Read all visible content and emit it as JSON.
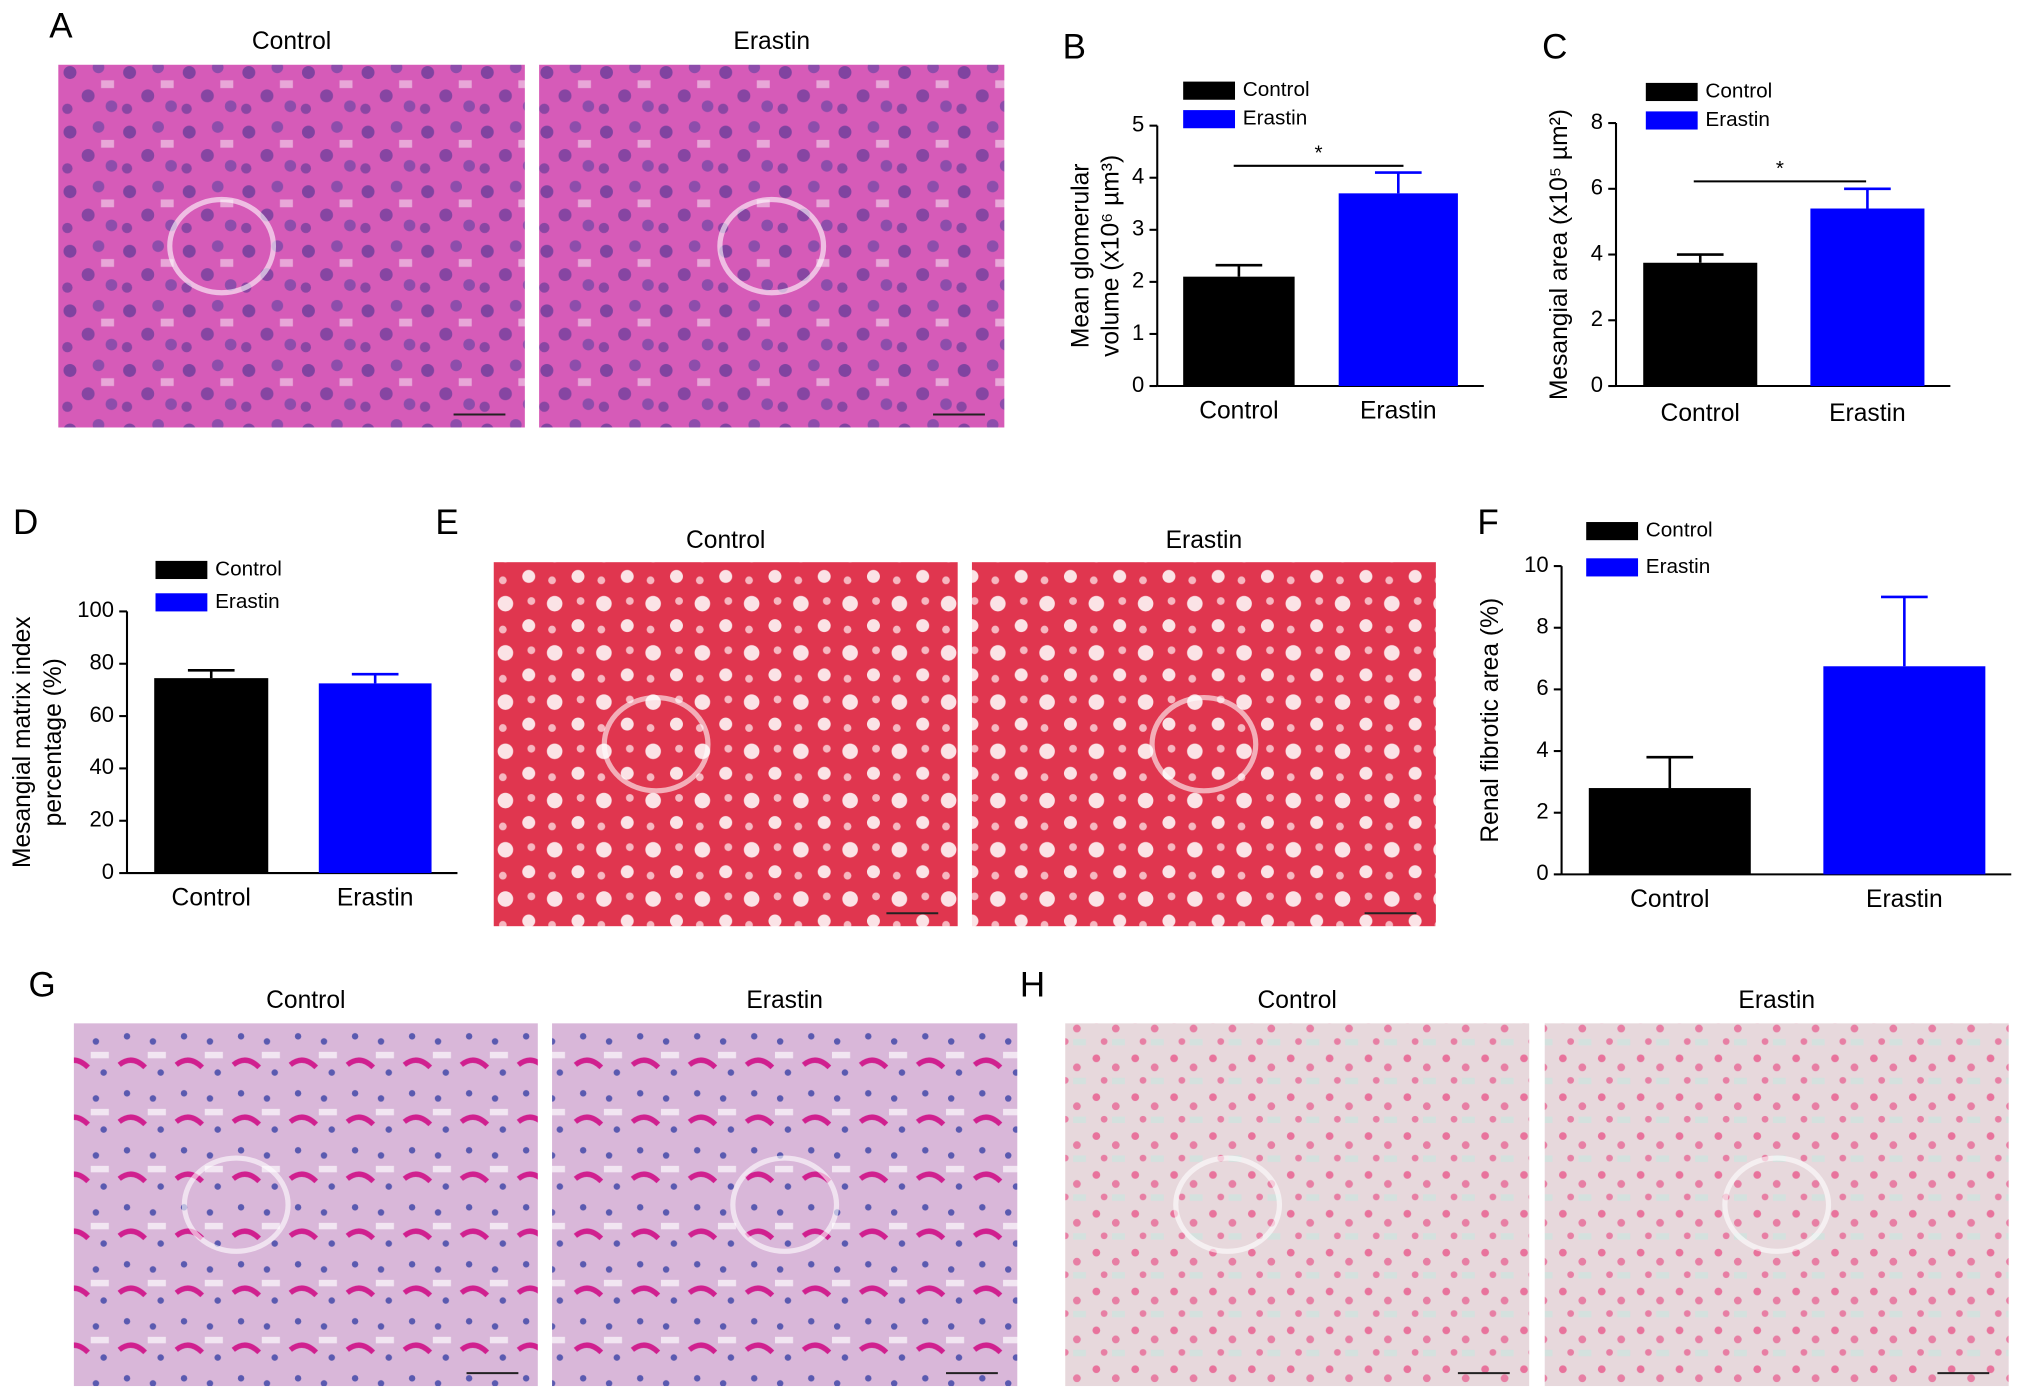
{
  "chart_data": [
    {
      "type": "bar",
      "label": "B",
      "ylabel": [
        "Mean glomerular",
        "volume (x10⁶ µm³)"
      ],
      "categories": [
        "Control",
        "Erastin"
      ],
      "series": [
        {
          "name": "Control",
          "color": "#000000",
          "values": [
            2.1,
            null
          ],
          "errors": [
            0.22,
            null
          ]
        },
        {
          "name": "Erastin",
          "color": "#0000ff",
          "values": [
            null,
            3.7
          ],
          "errors": [
            null,
            0.4
          ]
        }
      ],
      "ylim": [
        0,
        5
      ],
      "yticks": [
        0,
        1,
        2,
        3,
        4,
        5
      ],
      "significance": "*"
    },
    {
      "type": "bar",
      "label": "C",
      "ylabel": [
        "Mesangial area (x10⁵ µm²)"
      ],
      "categories": [
        "Control",
        "Erastin"
      ],
      "series": [
        {
          "name": "Control",
          "color": "#000000",
          "values": [
            3.75,
            null
          ],
          "errors": [
            0.25,
            null
          ]
        },
        {
          "name": "Erastin",
          "color": "#0000ff",
          "values": [
            null,
            5.4
          ],
          "errors": [
            null,
            0.6
          ]
        }
      ],
      "ylim": [
        0,
        8
      ],
      "yticks": [
        0,
        2,
        4,
        6,
        8
      ],
      "significance": "*"
    },
    {
      "type": "bar",
      "label": "D",
      "ylabel": [
        "Mesangial matrix index",
        "percentage (%)"
      ],
      "categories": [
        "Control",
        "Erastin"
      ],
      "series": [
        {
          "name": "Control",
          "color": "#000000",
          "values": [
            74.5,
            null
          ],
          "errors": [
            3,
            null
          ]
        },
        {
          "name": "Erastin",
          "color": "#0000ff",
          "values": [
            null,
            72.5
          ],
          "errors": [
            null,
            3.5
          ]
        }
      ],
      "ylim": [
        0,
        100
      ],
      "yticks": [
        0,
        20,
        40,
        60,
        80,
        100
      ]
    },
    {
      "type": "bar",
      "label": "F",
      "ylabel": [
        "Renal fibrotic area (%)"
      ],
      "categories": [
        "Control",
        "Erastin"
      ],
      "series": [
        {
          "name": "Control",
          "color": "#000000",
          "values": [
            2.8,
            null
          ],
          "errors": [
            1.0,
            null
          ]
        },
        {
          "name": "Erastin",
          "color": "#0000ff",
          "values": [
            null,
            6.75
          ],
          "errors": [
            null,
            2.25
          ]
        }
      ],
      "ylim": [
        0,
        10
      ],
      "yticks": [
        0,
        2,
        4,
        6,
        8,
        10
      ]
    }
  ],
  "images": [
    {
      "label": "A",
      "titles": [
        "Control",
        "Erastin"
      ]
    },
    {
      "label": "E",
      "titles": [
        "Control",
        "Erastin"
      ]
    },
    {
      "label": "G",
      "titles": [
        "Control",
        "Erastin"
      ]
    },
    {
      "label": "H",
      "titles": [
        "Control",
        "Erastin"
      ]
    }
  ]
}
